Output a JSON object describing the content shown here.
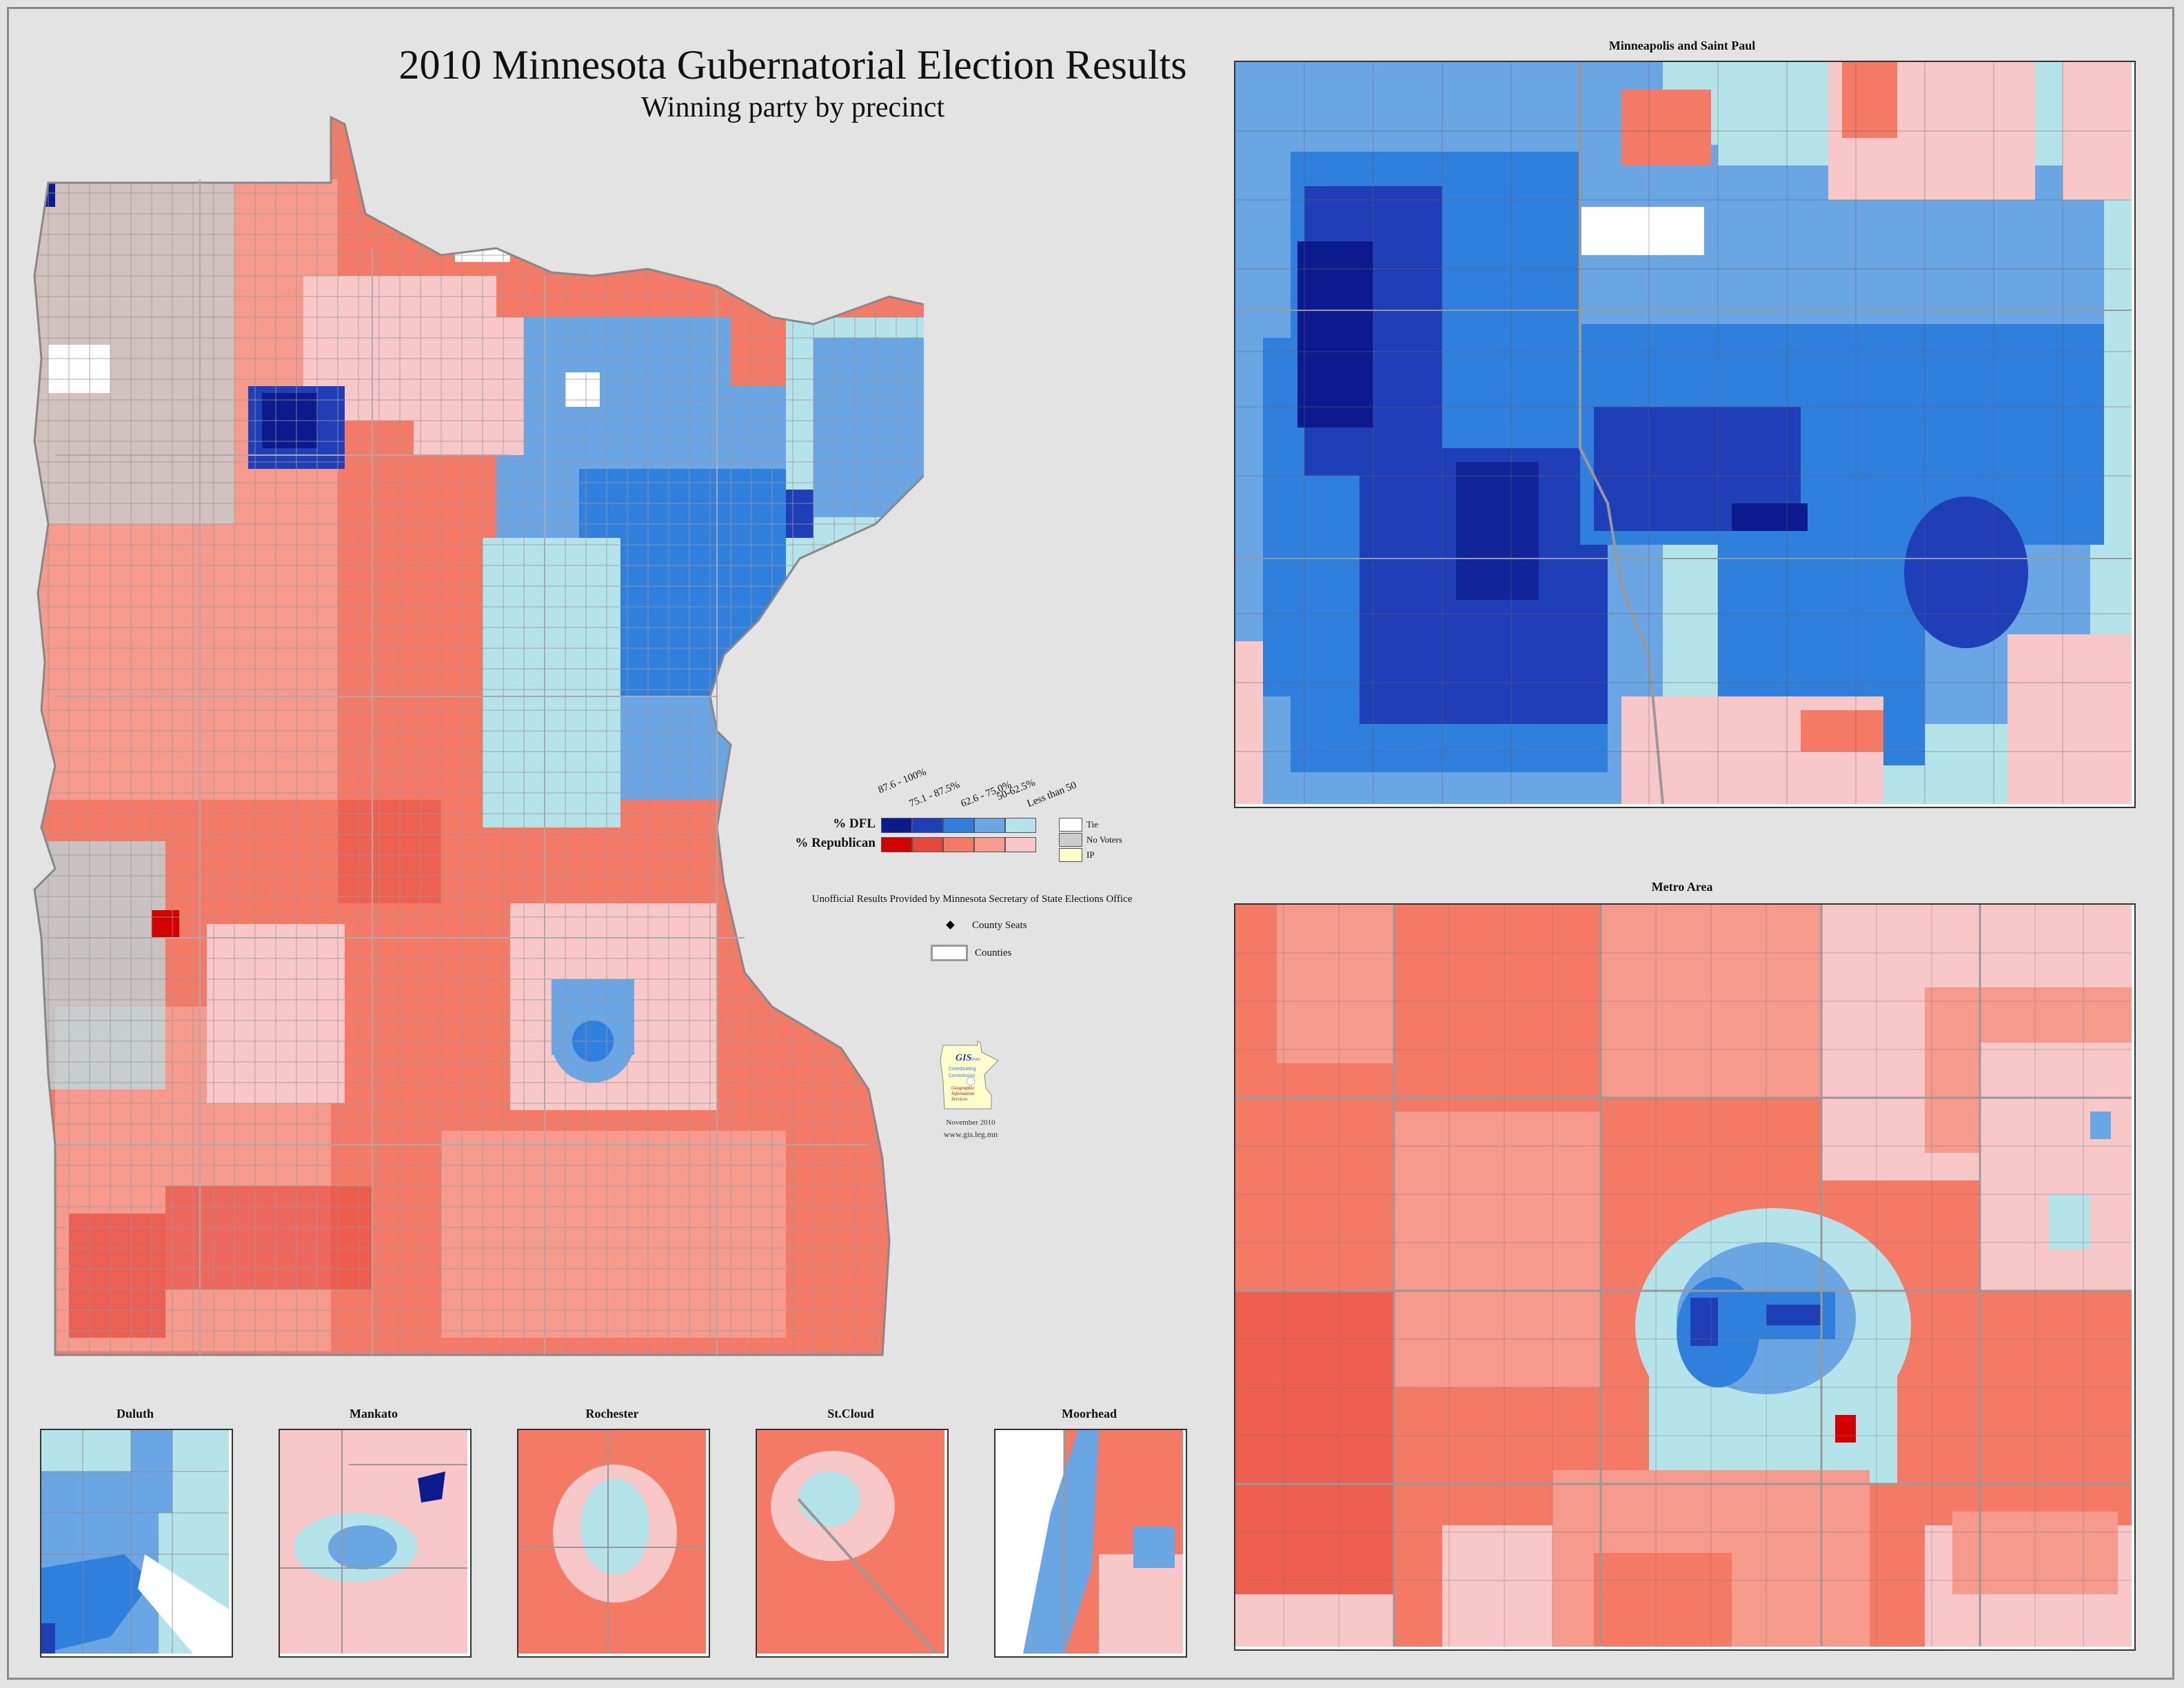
{
  "title": "2010 Minnesota Gubernatorial Election Results",
  "subtitle": "Winning party by precinct",
  "insets": {
    "minneapolis_st_paul": "Minneapolis and Saint Paul",
    "metro": "Metro Area",
    "duluth": "Duluth",
    "mankato": "Mankato",
    "rochester": "Rochester",
    "st_cloud": "St.Cloud",
    "moorhead": "Moorhead"
  },
  "legend": {
    "ranges": [
      "87.6 - 100%",
      "75.1 - 87.5%",
      "62.6 - 75.0%",
      "50-62.5%",
      "Less than 50"
    ],
    "dfl_label": "% DFL",
    "rep_label": "% Republican",
    "tie": "Tie",
    "no_voters": "No Voters",
    "ip": "IP",
    "source": "Unofficial Results Provided by Minnesota Secretary of State Elections Office",
    "county_seats": "County Seats",
    "counties": "Counties"
  },
  "logo": {
    "lettering": "GIS State Coordinating Commission Geographic Information Services",
    "date": "November 2010",
    "url": "www.gis.leg.mn"
  },
  "colors": {
    "dfl": [
      "#0b1a8c",
      "#1f3fb8",
      "#2f7fdc",
      "#6aa6e4",
      "#b5e3ea"
    ],
    "rep": [
      "#d40000",
      "#e8473b",
      "#f47a66",
      "#f59a8c",
      "#f8c8c8"
    ],
    "tie": "#ffffff",
    "no_voters": "#cccccc",
    "ip": "#ffffcc",
    "background": "#e3e3e3"
  }
}
